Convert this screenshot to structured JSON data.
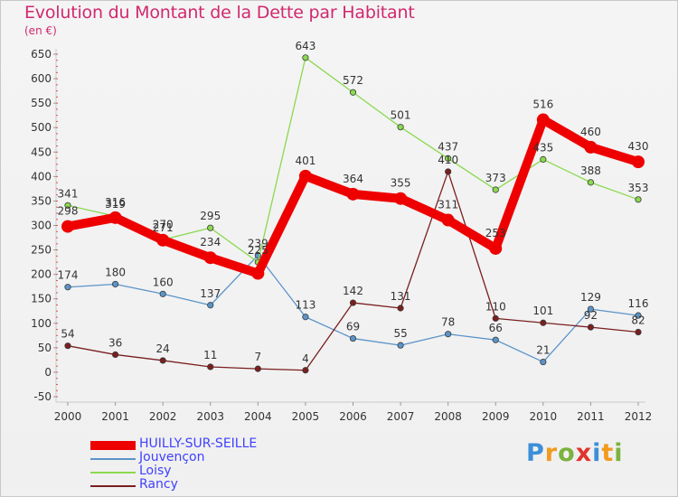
{
  "header": {
    "title": "Evolution du Montant de la Dette par Habitant",
    "unit": "(en €)"
  },
  "brand": {
    "letters": [
      "P",
      "r",
      "o",
      "x",
      "i",
      "t",
      "i"
    ],
    "letter_colors": [
      "#3d8fd8",
      "#f29a1f",
      "#7ab33e",
      "#e0332b",
      "#3d8fd8",
      "#f29a1f",
      "#7ab33e"
    ]
  },
  "chart_data": {
    "type": "line",
    "title": "Evolution du Montant de la Dette par Habitant",
    "ylabel": "(en €)",
    "xlabel": "",
    "categories": [
      "2000",
      "2001",
      "2002",
      "2003",
      "2004",
      "2005",
      "2006",
      "2007",
      "2008",
      "2009",
      "2010",
      "2011",
      "2012"
    ],
    "ylim": [
      -50,
      650
    ],
    "yticks": [
      -50,
      0,
      50,
      100,
      150,
      200,
      250,
      300,
      350,
      400,
      450,
      500,
      550,
      600,
      650
    ],
    "grid": false,
    "legend_position": "bottom-left",
    "series": [
      {
        "name": "HUILLY-SUR-SEILLE",
        "color": "#ee0000",
        "emphasis": true,
        "values": [
          298,
          316,
          270,
          234,
          202,
          401,
          364,
          355,
          311,
          253,
          516,
          460,
          430
        ],
        "labels": [
          "298",
          "316",
          "270",
          "234",
          "",
          "401",
          "364",
          "355",
          "311",
          "253",
          "516",
          "460",
          "430"
        ]
      },
      {
        "name": "Jouvençon",
        "color": "#5b94c9",
        "values": [
          174,
          180,
          160,
          137,
          239,
          113,
          69,
          55,
          78,
          66,
          21,
          129,
          116
        ],
        "labels": [
          "174",
          "180",
          "160",
          "137",
          "239",
          "113",
          "69",
          "55",
          "78",
          "66",
          "21",
          "129",
          "116"
        ]
      },
      {
        "name": "Loisy",
        "color": "#8ad94f",
        "values": [
          341,
          319,
          271,
          295,
          225,
          643,
          572,
          501,
          437,
          373,
          435,
          388,
          353
        ],
        "labels": [
          "341",
          "319",
          "271",
          "295",
          "225",
          "643",
          "572",
          "501",
          "437",
          "373",
          "435",
          "388",
          "353"
        ]
      },
      {
        "name": "Rancy",
        "color": "#7a1f1f",
        "values": [
          54,
          36,
          24,
          11,
          7,
          4,
          142,
          131,
          410,
          110,
          101,
          92,
          82
        ],
        "labels": [
          "54",
          "36",
          "24",
          "11",
          "7",
          "4",
          "142",
          "131",
          "410",
          "110",
          "101",
          "92",
          "82"
        ]
      }
    ]
  }
}
